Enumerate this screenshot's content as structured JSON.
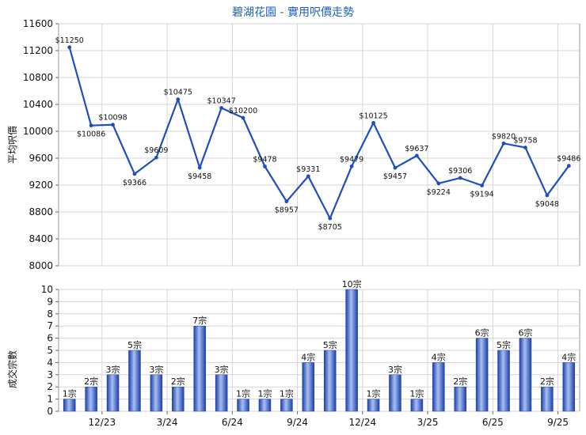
{
  "chart_data": [
    {
      "type": "line",
      "title": "碧湖花園 - 實用呎價走勢",
      "ylabel": "平均呎價",
      "ylim": [
        8000,
        11600
      ],
      "yticks": [
        8000,
        8400,
        8800,
        9200,
        9600,
        10000,
        10400,
        10800,
        11200,
        11600
      ],
      "grid": true,
      "legend": "none",
      "color": "#1f4fbf",
      "series": [
        {
          "values": [
            11250,
            10086,
            10098,
            9366,
            9609,
            10475,
            9458,
            10347,
            10200,
            9478,
            8957,
            9331,
            8705,
            9479,
            10125,
            9457,
            9637,
            9224,
            9306,
            9194,
            9820,
            9758,
            9048,
            9486
          ],
          "labels": [
            "$11250",
            "$10086",
            "$10098",
            "$9366",
            "$9609",
            "$10475",
            "$9458",
            "$10347",
            "$10200",
            "$9478",
            "$8957",
            "$9331",
            "$8705",
            "$9479",
            "$10125",
            "$9457",
            "$9637",
            "$9224",
            "$9306",
            "$9194",
            "$9820",
            "$9758",
            "$9048",
            "$9486"
          ]
        }
      ]
    },
    {
      "type": "bar",
      "ylabel": "成交宗數",
      "ylim": [
        0,
        10
      ],
      "yticks": [
        0,
        1,
        2,
        3,
        4,
        5,
        6,
        7,
        8,
        9,
        10
      ],
      "grid": true,
      "legend": "none",
      "color": "#3355cc",
      "x_tick_labels": [
        "12/23",
        "3/24",
        "6/24",
        "9/24",
        "12/24",
        "3/25",
        "6/25",
        "9/25"
      ],
      "series": [
        {
          "values": [
            1,
            2,
            3,
            5,
            3,
            2,
            7,
            3,
            1,
            1,
            1,
            4,
            5,
            10,
            1,
            3,
            1,
            4,
            2,
            6,
            5,
            6,
            2,
            4
          ],
          "labels": [
            "1宗",
            "2宗",
            "3宗",
            "5宗",
            "3宗",
            "2宗",
            "7宗",
            "3宗",
            "1宗",
            "1宗",
            "1宗",
            "4宗",
            "5宗",
            "10宗",
            "1宗",
            "3宗",
            "1宗",
            "4宗",
            "2宗",
            "6宗",
            "5宗",
            "6宗",
            "2宗",
            "4宗"
          ]
        }
      ]
    }
  ]
}
